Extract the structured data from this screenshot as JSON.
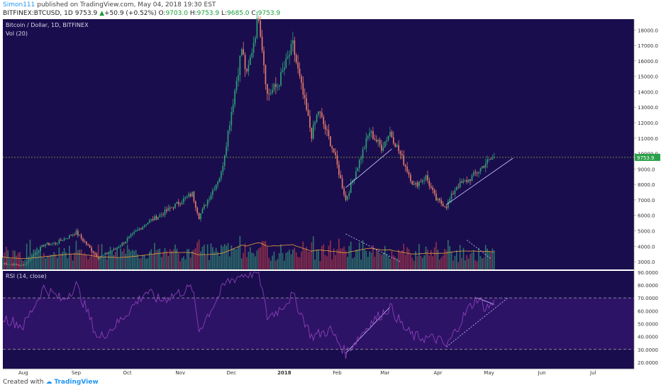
{
  "header": {
    "author": "Simon111",
    "published": "published on TradingView.com, May 04, 2018 19:30 EST",
    "symbol": "BITFINEX:BTCUSD, 1D",
    "last": "9753.9",
    "change": "+50.9 (+0.52%)",
    "open_label": "O:",
    "open": "9703.0",
    "high_label": "H:",
    "high": "9753.9",
    "low_label": "L:",
    "low": "9685.0",
    "close_label": "C:",
    "close": "9753.9"
  },
  "pane_titles": {
    "main": "Bitcoin / Dollar, 1D, BITFINEX",
    "volume": "Vol (20)",
    "rsi": "RSI (14, close)"
  },
  "footer": {
    "created": "Created with",
    "brand": "TradingView"
  },
  "colors": {
    "chart_bg": "#1a0d4d",
    "rsi_band": "#2d1366",
    "up": "#2e9e78",
    "down": "#e37a6a",
    "vol_up": "#2c6e6a",
    "vol_down": "#8c2f4c",
    "price_line": "#9acd32",
    "ma": "#e8a23a",
    "rsi_line": "#8b3fb8",
    "trend": "#c9c9ff"
  },
  "chart_data": [
    {
      "type": "candlestick",
      "title": "Bitcoin / Dollar, 1D, BITFINEX",
      "x_start": "2017-07-20",
      "x_end": "2018-07-25",
      "x_ticks": [
        "Aug",
        "Sep",
        "Oct",
        "Nov",
        "Dec",
        "2018",
        "Feb",
        "Mar",
        "Apr",
        "May",
        "Jun",
        "Jul"
      ],
      "x_tick_dates": [
        "2017-08-01",
        "2017-09-01",
        "2017-10-01",
        "2017-11-01",
        "2017-12-01",
        "2018-01-01",
        "2018-02-01",
        "2018-03-01",
        "2018-04-01",
        "2018-05-01",
        "2018-06-01",
        "2018-07-01"
      ],
      "y_ticks": [
        "3000.0",
        "4000.0",
        "5000.0",
        "6000.0",
        "7000.0",
        "8000.0",
        "9000.0",
        "10000.0",
        "11000.0",
        "12000.0",
        "13000.0",
        "14000.0",
        "15000.0",
        "16000.0",
        "17000.0",
        "18000.0"
      ],
      "ylim": [
        2500,
        18700
      ],
      "last_price": 9753.9,
      "last_price_label": "9753.9",
      "close_series": {
        "dates": [
          "2017-07-20",
          "2017-08-01",
          "2017-08-13",
          "2017-08-20",
          "2017-09-01",
          "2017-09-14",
          "2017-09-25",
          "2017-10-12",
          "2017-10-20",
          "2017-11-08",
          "2017-11-12",
          "2017-11-25",
          "2017-12-07",
          "2017-12-10",
          "2017-12-17",
          "2017-12-22",
          "2017-12-28",
          "2018-01-06",
          "2018-01-10",
          "2018-01-17",
          "2018-01-21",
          "2018-01-30",
          "2018-02-06",
          "2018-02-12",
          "2018-02-20",
          "2018-02-27",
          "2018-03-04",
          "2018-03-13",
          "2018-03-18",
          "2018-03-25",
          "2018-03-31",
          "2018-04-06",
          "2018-04-12",
          "2018-04-19",
          "2018-04-25",
          "2018-04-29",
          "2018-05-04"
        ],
        "close": [
          2900,
          2750,
          4100,
          4200,
          4900,
          3250,
          3900,
          5500,
          6000,
          7400,
          5900,
          8700,
          16800,
          15000,
          19000,
          13800,
          14400,
          17000,
          14800,
          11200,
          12800,
          10100,
          7000,
          8900,
          11400,
          10400,
          11400,
          9200,
          7900,
          8500,
          7000,
          6600,
          7900,
          8300,
          8900,
          9400,
          9750
        ]
      },
      "series": [
        {
          "name": "Vol (20)",
          "type": "bar",
          "note_ylim": [
            0,
            300000
          ]
        },
        {
          "name": "MA",
          "type": "line"
        }
      ]
    },
    {
      "type": "line",
      "title": "RSI (14, close)",
      "y_ticks": [
        "20.0000",
        "30.0000",
        "40.0000",
        "50.0000",
        "60.0000",
        "70.0000",
        "80.0000",
        "90.0000"
      ],
      "ylim": [
        15,
        91
      ],
      "hlines": [
        30,
        70
      ],
      "dates": [
        "2017-07-20",
        "2017-08-01",
        "2017-08-13",
        "2017-08-24",
        "2017-09-01",
        "2017-09-14",
        "2017-09-25",
        "2017-10-12",
        "2017-10-20",
        "2017-11-08",
        "2017-11-12",
        "2017-11-28",
        "2017-12-07",
        "2017-12-17",
        "2017-12-22",
        "2017-12-28",
        "2018-01-06",
        "2018-01-17",
        "2018-01-28",
        "2018-02-06",
        "2018-02-20",
        "2018-03-04",
        "2018-03-13",
        "2018-03-18",
        "2018-04-01",
        "2018-04-06",
        "2018-04-18",
        "2018-04-24",
        "2018-04-29",
        "2018-05-04"
      ],
      "values": [
        55,
        48,
        78,
        68,
        80,
        38,
        50,
        75,
        68,
        78,
        45,
        82,
        88,
        90,
        55,
        60,
        72,
        40,
        45,
        27,
        50,
        63,
        45,
        40,
        38,
        32,
        60,
        70,
        62,
        66
      ]
    }
  ]
}
